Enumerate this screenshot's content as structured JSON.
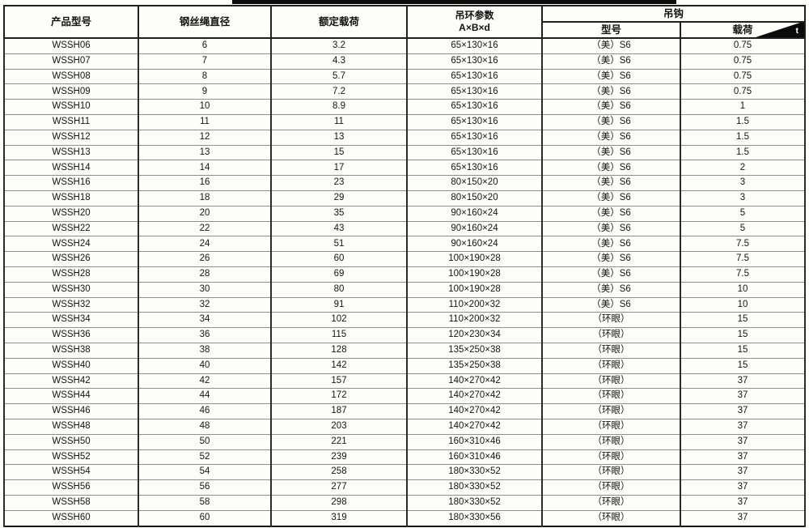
{
  "page": {
    "top_strip_color": "#0c0c0c",
    "background_color": "#fdfdfc"
  },
  "table": {
    "headers": {
      "product_model": "产品型号",
      "wire_rope_diameter": "钢丝绳直径",
      "rated_load": "额定载荷",
      "ring_params_line1": "吊环参数",
      "ring_params_line2": "A×B×d",
      "hook_group": "吊钩",
      "hook_model": "型号",
      "hook_load": "载荷",
      "hook_load_unit": "t"
    },
    "rows": [
      {
        "model": "WSSH06",
        "diameter": "6",
        "rated_load": "3.2",
        "ring_params": "65×130×16",
        "hook_model": "（美）S6",
        "hook_load": "0.75"
      },
      {
        "model": "WSSH07",
        "diameter": "7",
        "rated_load": "4.3",
        "ring_params": "65×130×16",
        "hook_model": "（美）S6",
        "hook_load": "0.75"
      },
      {
        "model": "WSSH08",
        "diameter": "8",
        "rated_load": "5.7",
        "ring_params": "65×130×16",
        "hook_model": "（美）S6",
        "hook_load": "0.75"
      },
      {
        "model": "WSSH09",
        "diameter": "9",
        "rated_load": "7.2",
        "ring_params": "65×130×16",
        "hook_model": "（美）S6",
        "hook_load": "0.75"
      },
      {
        "model": "WSSH10",
        "diameter": "10",
        "rated_load": "8.9",
        "ring_params": "65×130×16",
        "hook_model": "（美）S6",
        "hook_load": "1"
      },
      {
        "model": "WSSH11",
        "diameter": "11",
        "rated_load": "11",
        "ring_params": "65×130×16",
        "hook_model": "（美）S6",
        "hook_load": "1.5"
      },
      {
        "model": "WSSH12",
        "diameter": "12",
        "rated_load": "13",
        "ring_params": "65×130×16",
        "hook_model": "（美）S6",
        "hook_load": "1.5"
      },
      {
        "model": "WSSH13",
        "diameter": "13",
        "rated_load": "15",
        "ring_params": "65×130×16",
        "hook_model": "（美）S6",
        "hook_load": "1.5"
      },
      {
        "model": "WSSH14",
        "diameter": "14",
        "rated_load": "17",
        "ring_params": "65×130×16",
        "hook_model": "（美）S6",
        "hook_load": "2"
      },
      {
        "model": "WSSH16",
        "diameter": "16",
        "rated_load": "23",
        "ring_params": "80×150×20",
        "hook_model": "（美）S6",
        "hook_load": "3"
      },
      {
        "model": "WSSH18",
        "diameter": "18",
        "rated_load": "29",
        "ring_params": "80×150×20",
        "hook_model": "（美）S6",
        "hook_load": "3"
      },
      {
        "model": "WSSH20",
        "diameter": "20",
        "rated_load": "35",
        "ring_params": "90×160×24",
        "hook_model": "（美）S6",
        "hook_load": "5"
      },
      {
        "model": "WSSH22",
        "diameter": "22",
        "rated_load": "43",
        "ring_params": "90×160×24",
        "hook_model": "（美）S6",
        "hook_load": "5"
      },
      {
        "model": "WSSH24",
        "diameter": "24",
        "rated_load": "51",
        "ring_params": "90×160×24",
        "hook_model": "（美）S6",
        "hook_load": "7.5"
      },
      {
        "model": "WSSH26",
        "diameter": "26",
        "rated_load": "60",
        "ring_params": "100×190×28",
        "hook_model": "（美）S6",
        "hook_load": "7.5"
      },
      {
        "model": "WSSH28",
        "diameter": "28",
        "rated_load": "69",
        "ring_params": "100×190×28",
        "hook_model": "（美）S6",
        "hook_load": "7.5"
      },
      {
        "model": "WSSH30",
        "diameter": "30",
        "rated_load": "80",
        "ring_params": "100×190×28",
        "hook_model": "（美）S6",
        "hook_load": "10"
      },
      {
        "model": "WSSH32",
        "diameter": "32",
        "rated_load": "91",
        "ring_params": "110×200×32",
        "hook_model": "（美）S6",
        "hook_load": "10"
      },
      {
        "model": "WSSH34",
        "diameter": "34",
        "rated_load": "102",
        "ring_params": "110×200×32",
        "hook_model": "（环眼）",
        "hook_load": "15"
      },
      {
        "model": "WSSH36",
        "diameter": "36",
        "rated_load": "115",
        "ring_params": "120×230×34",
        "hook_model": "（环眼）",
        "hook_load": "15"
      },
      {
        "model": "WSSH38",
        "diameter": "38",
        "rated_load": "128",
        "ring_params": "135×250×38",
        "hook_model": "（环眼）",
        "hook_load": "15"
      },
      {
        "model": "WSSH40",
        "diameter": "40",
        "rated_load": "142",
        "ring_params": "135×250×38",
        "hook_model": "（环眼）",
        "hook_load": "15"
      },
      {
        "model": "WSSH42",
        "diameter": "42",
        "rated_load": "157",
        "ring_params": "140×270×42",
        "hook_model": "（环眼）",
        "hook_load": "37"
      },
      {
        "model": "WSSH44",
        "diameter": "44",
        "rated_load": "172",
        "ring_params": "140×270×42",
        "hook_model": "（环眼）",
        "hook_load": "37"
      },
      {
        "model": "WSSH46",
        "diameter": "46",
        "rated_load": "187",
        "ring_params": "140×270×42",
        "hook_model": "（环眼）",
        "hook_load": "37"
      },
      {
        "model": "WSSH48",
        "diameter": "48",
        "rated_load": "203",
        "ring_params": "140×270×42",
        "hook_model": "（环眼）",
        "hook_load": "37"
      },
      {
        "model": "WSSH50",
        "diameter": "50",
        "rated_load": "221",
        "ring_params": "160×310×46",
        "hook_model": "（环眼）",
        "hook_load": "37"
      },
      {
        "model": "WSSH52",
        "diameter": "52",
        "rated_load": "239",
        "ring_params": "160×310×46",
        "hook_model": "（环眼）",
        "hook_load": "37"
      },
      {
        "model": "WSSH54",
        "diameter": "54",
        "rated_load": "258",
        "ring_params": "180×330×52",
        "hook_model": "（环眼）",
        "hook_load": "37"
      },
      {
        "model": "WSSH56",
        "diameter": "56",
        "rated_load": "277",
        "ring_params": "180×330×52",
        "hook_model": "（环眼）",
        "hook_load": "37"
      },
      {
        "model": "WSSH58",
        "diameter": "58",
        "rated_load": "298",
        "ring_params": "180×330×52",
        "hook_model": "（环眼）",
        "hook_load": "37"
      },
      {
        "model": "WSSH60",
        "diameter": "60",
        "rated_load": "319",
        "ring_params": "180×330×56",
        "hook_model": "（环眼）",
        "hook_load": "37"
      }
    ]
  }
}
